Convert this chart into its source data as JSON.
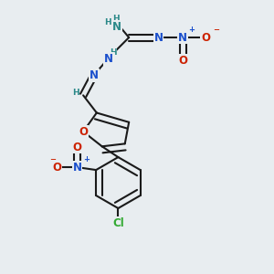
{
  "background_color": "#e8edf0",
  "bond_color": "#1a1a1a",
  "bond_width": 1.5,
  "atom_colors": {
    "C": "#1a1a1a",
    "N": "#1a4fcc",
    "O": "#cc2200",
    "Cl": "#33aa33",
    "H": "#2a8888"
  },
  "font_size_atom": 8.5,
  "font_size_h": 6.5,
  "font_size_charge": 6.0,
  "dbo": 0.12
}
